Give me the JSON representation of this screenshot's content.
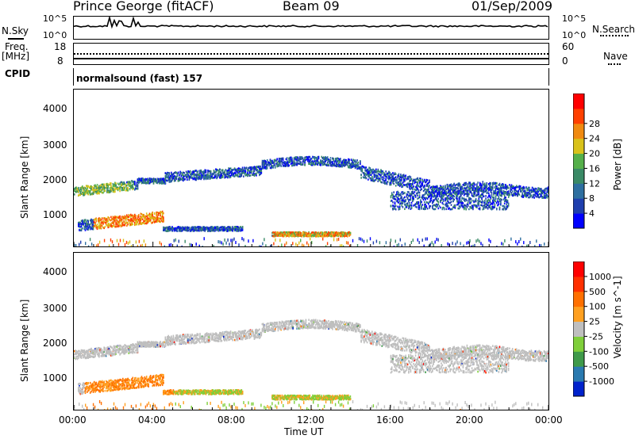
{
  "header": {
    "station": "Prince George (fitACF)",
    "beam": "Beam 09",
    "date": "01/Sep/2009"
  },
  "top_panels": {
    "nsky_label": "N.Sky",
    "nsearch_label": "N.Search",
    "nsky_ticks": [
      "10^5",
      "10^0"
    ],
    "nsearch_ticks": [
      "10^5",
      "10^0"
    ],
    "freq_label": "Freq.",
    "freq_unit": "[MHz]",
    "freq_ticks": [
      "18",
      "8"
    ],
    "nave_label": "Nave",
    "nave_ticks": [
      "60",
      "0"
    ],
    "cpid_label": "CPID",
    "cpid_value": "normalsound (fast) 157"
  },
  "chart_data": [
    {
      "type": "heatmap",
      "name": "power-panel",
      "ylabel": "Slant Range [km]",
      "yticks": [
        "1000",
        "2000",
        "3000",
        "4000"
      ],
      "ylim": [
        180,
        4600
      ],
      "xlim": [
        0,
        24
      ],
      "colorbar": {
        "label": "Power [dB]",
        "ticks": [
          "4",
          "8",
          "12",
          "16",
          "20",
          "24",
          "28"
        ],
        "colors": [
          "#0000ff",
          "#1f3fae",
          "#2e6fa0",
          "#3a8a66",
          "#55b04a",
          "#d9c21a",
          "#f08a10",
          "#ff4000",
          "#ff0000"
        ]
      }
    },
    {
      "type": "heatmap",
      "name": "velocity-panel",
      "ylabel": "Slant Range [km]",
      "yticks": [
        "1000",
        "2000",
        "3000",
        "4000"
      ],
      "ylim": [
        180,
        4600
      ],
      "xlim": [
        0,
        24
      ],
      "colorbar": {
        "label": "Velocity [m s^-1]",
        "ticks": [
          "1000",
          "500",
          "100",
          "25",
          "-25",
          "-100",
          "-500",
          "-1000"
        ],
        "colors": [
          "#0022cc",
          "#2a7ab0",
          "#3f9a4a",
          "#7fcf3a",
          "#bfbfbf",
          "#ffa020",
          "#ff7000",
          "#ff3000",
          "#ff0000"
        ]
      }
    }
  ],
  "xaxis": {
    "ticks": [
      "00:00",
      "04:00",
      "08:00",
      "12:00",
      "16:00",
      "20:00",
      "00:00"
    ],
    "label": "Time UT"
  }
}
